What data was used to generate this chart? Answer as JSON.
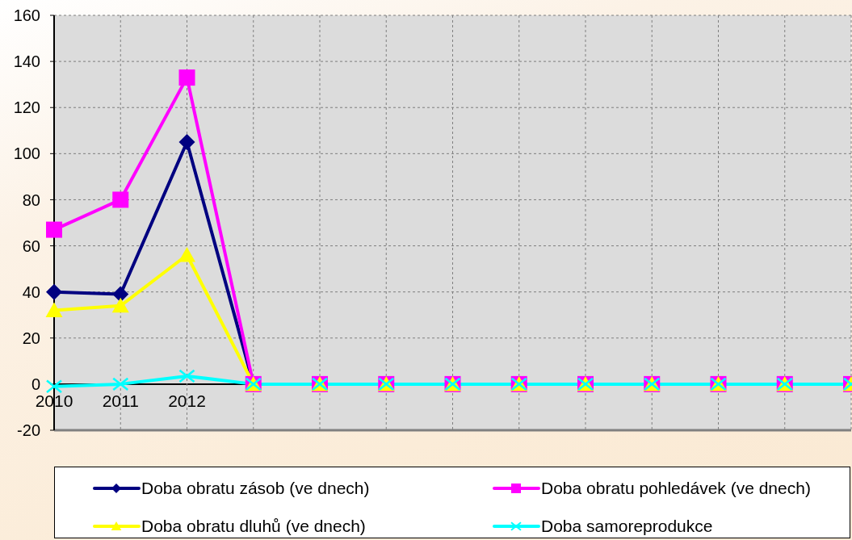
{
  "chart_data": {
    "type": "line",
    "categories": [
      "2010",
      "2011",
      "2012",
      null,
      null,
      null,
      null,
      null,
      null,
      null,
      null,
      null,
      null
    ],
    "series": [
      {
        "name": "Doba obratu zásob (ve dnech)",
        "color": "#000080",
        "marker": "diamond",
        "values": [
          40,
          39,
          105,
          0,
          null,
          null,
          null,
          null,
          null,
          null,
          null,
          null,
          null
        ]
      },
      {
        "name": "Doba obratu pohledávek (ve dnech)",
        "color": "#ff00ff",
        "marker": "square",
        "values": [
          67,
          80,
          133,
          0,
          0,
          0,
          0,
          0,
          0,
          0,
          0,
          0,
          0
        ]
      },
      {
        "name": "Doba obratu dluhů (ve dnech)",
        "color": "#ffff00",
        "marker": "triangle",
        "values": [
          32,
          34,
          56,
          0,
          0,
          0,
          0,
          0,
          0,
          0,
          0,
          0,
          0
        ]
      },
      {
        "name": "Doba samoreprodukce",
        "color": "#00ffff",
        "marker": "cross",
        "values": [
          -1,
          0,
          3.5,
          0,
          0,
          0,
          0,
          0,
          0,
          0,
          0,
          0,
          0
        ]
      }
    ],
    "ylim": [
      -20,
      160
    ],
    "yticks": [
      -20,
      0,
      20,
      40,
      60,
      80,
      100,
      120,
      140,
      160
    ],
    "grid": true,
    "legend": "bottom",
    "line_style": "solid"
  }
}
